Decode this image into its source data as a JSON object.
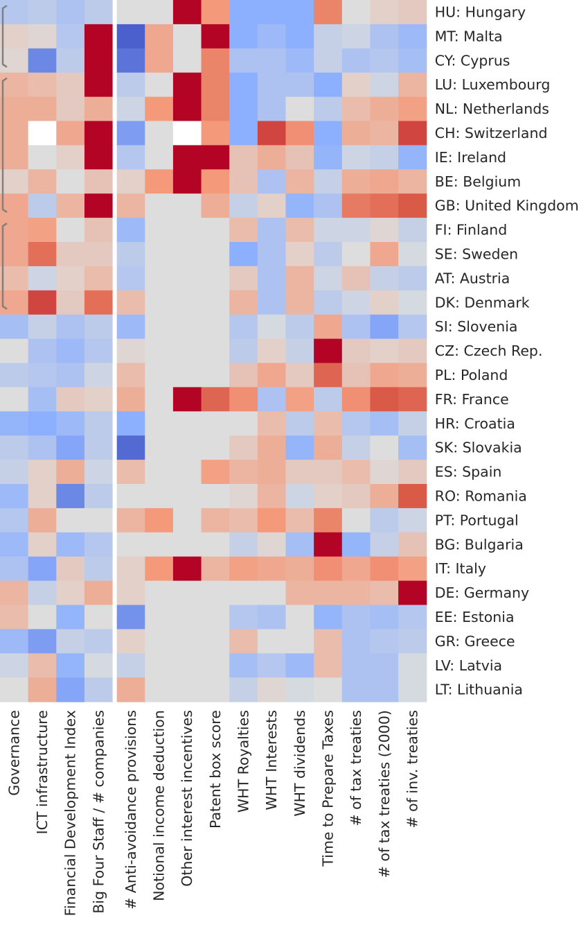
{
  "chart_data": {
    "type": "heatmap",
    "title": "",
    "colormap": "coolwarm",
    "value_range": [
      -1,
      1
    ],
    "columns": [
      "Governance",
      "ICT infrastructure",
      "Financial Development Index",
      "Big Four Staff / # companies",
      "# Anti-avoidance provisions",
      "Notional income deduction",
      "Other interest incentives",
      "Patent box score",
      "WHT Royalties",
      "WHT Interests",
      "WHT dividends",
      "Time to Prepare Taxes",
      "# of tax treaties",
      "# of tax treaties (2000)",
      "# of inv. treaties"
    ],
    "rows": [
      "HU: Hungary",
      "MT: Malta",
      "CY: Cyprus",
      "LU: Luxembourg",
      "NL: Netherlands",
      "CH: Switzerland",
      "IE: Ireland",
      "BE: Belgium",
      "GB: United Kingdom",
      "FI: Finland",
      "SE: Sweden",
      "AT: Austria",
      "DK: Denmark",
      "SI: Slovenia",
      "CZ: Czech Rep.",
      "PL: Poland",
      "FR: France",
      "HR: Croatia",
      "SK: Slovakia",
      "ES: Spain",
      "RO: Romania",
      "PT: Portugal",
      "BG: Bulgaria",
      "IT: Italy",
      "DE: Germany",
      "EE: Estonia",
      "GR: Greece",
      "LV: Latvia",
      "LT: Lithuania"
    ],
    "values": [
      [
        -0.25,
        -0.2,
        -0.3,
        -0.2,
        0,
        0,
        1,
        0.5,
        -0.5,
        -0.5,
        -0.5,
        0.6,
        0,
        0.1,
        0.15
      ],
      [
        0.1,
        0.05,
        -0.25,
        1,
        -0.9,
        0.4,
        0,
        1,
        -0.5,
        -0.4,
        -0.5,
        -0.15,
        -0.1,
        -0.3,
        -0.4
      ],
      [
        0.05,
        -0.7,
        -0.2,
        1,
        -0.8,
        0.4,
        0,
        0.6,
        -0.3,
        -0.3,
        -0.4,
        -0.15,
        -0.3,
        -0.25,
        -0.35
      ],
      [
        0.3,
        0.25,
        0.15,
        1,
        -0.2,
        0,
        1,
        0.6,
        -0.5,
        -0.3,
        -0.3,
        -0.5,
        0.1,
        -0.1,
        0.3
      ],
      [
        0.35,
        0.35,
        0.15,
        0.35,
        -0.1,
        0.5,
        1,
        0.6,
        -0.5,
        -0.3,
        0,
        -0.2,
        0.25,
        0.35,
        0.45
      ],
      [
        0.35,
        null,
        0.4,
        1,
        -0.6,
        0,
        null,
        0.5,
        -0.5,
        0.85,
        0.55,
        -0.5,
        0.35,
        0.3,
        0.85
      ],
      [
        0.35,
        0,
        0.1,
        1,
        -0.25,
        0,
        1,
        1,
        0.2,
        0.35,
        0.2,
        -0.45,
        -0.1,
        -0.15,
        -0.45
      ],
      [
        0.1,
        0.3,
        0,
        0.2,
        0.1,
        0.5,
        1,
        0.5,
        0.2,
        -0.3,
        0.3,
        -0.15,
        0.35,
        0.4,
        0.3
      ],
      [
        0.4,
        -0.2,
        0.3,
        1,
        0.3,
        0,
        0,
        0.35,
        -0.15,
        0.1,
        -0.45,
        -0.3,
        0.65,
        0.7,
        0.8
      ],
      [
        0.4,
        0.45,
        0,
        0.2,
        -0.4,
        0,
        0,
        0,
        0.25,
        -0.3,
        0.25,
        -0.1,
        -0.1,
        0.05,
        -0.15
      ],
      [
        0.4,
        0.7,
        0.15,
        0.15,
        -0.2,
        0,
        0,
        0,
        -0.5,
        -0.3,
        0.1,
        -0.2,
        0,
        0.4,
        -0.05
      ],
      [
        0.25,
        -0.1,
        0.1,
        0.25,
        -0.25,
        0,
        0,
        0,
        0.15,
        -0.3,
        0.3,
        -0.1,
        0.2,
        -0.15,
        -0.2
      ],
      [
        0.4,
        0.85,
        0.15,
        0.7,
        0.25,
        0,
        0,
        0,
        0.3,
        -0.3,
        0.3,
        -0.2,
        -0.1,
        0.1,
        -0.05
      ],
      [
        -0.35,
        -0.15,
        -0.3,
        -0.2,
        -0.4,
        0,
        0,
        0,
        -0.25,
        -0.05,
        -0.2,
        0.4,
        -0.3,
        -0.55,
        -0.25
      ],
      [
        0,
        -0.3,
        -0.4,
        -0.25,
        0.05,
        0,
        0,
        0,
        -0.2,
        0.1,
        -0.15,
        1,
        0.15,
        0.1,
        0.15
      ],
      [
        -0.2,
        -0.25,
        -0.3,
        -0.1,
        0.25,
        0,
        0,
        0,
        0.2,
        0.4,
        0.15,
        0.75,
        0.2,
        0.4,
        0.35
      ],
      [
        0,
        -0.35,
        0.15,
        0.1,
        0.35,
        0,
        1,
        0.75,
        0.55,
        -0.3,
        0.45,
        -0.2,
        0.55,
        0.8,
        0.75
      ],
      [
        -0.45,
        -0.5,
        -0.4,
        -0.2,
        -0.5,
        0,
        0,
        0,
        0,
        0.25,
        -0.2,
        0.25,
        -0.25,
        -0.35,
        -0.15
      ],
      [
        -0.2,
        -0.3,
        -0.55,
        -0.2,
        -0.85,
        0,
        0,
        0,
        0.15,
        0.35,
        -0.45,
        0.35,
        -0.15,
        0,
        -0.35
      ],
      [
        -0.15,
        0.1,
        0.35,
        -0.1,
        0.25,
        0,
        0,
        0.45,
        0.3,
        0.35,
        0.15,
        0.15,
        0.25,
        0.05,
        0.15
      ],
      [
        -0.4,
        0.1,
        -0.7,
        -0.2,
        0,
        0,
        0,
        0,
        0.05,
        0.3,
        -0.1,
        0.1,
        0.15,
        0.35,
        0.8
      ],
      [
        -0.25,
        0.35,
        0,
        0,
        0.3,
        0.5,
        0,
        0.3,
        0.25,
        0.5,
        0.25,
        0.6,
        0,
        -0.2,
        -0.1
      ],
      [
        -0.4,
        0.1,
        -0.4,
        -0.25,
        0,
        0,
        0,
        0,
        -0.15,
        0.05,
        -0.35,
        1,
        -0.45,
        -0.15,
        0.2
      ],
      [
        -0.3,
        -0.55,
        0.15,
        -0.2,
        0.1,
        0.5,
        1,
        0.3,
        0.45,
        0.4,
        0.35,
        0.55,
        0.4,
        0.55,
        0.45
      ],
      [
        0.3,
        -0.15,
        0.1,
        0.35,
        0.1,
        0,
        0,
        0,
        0,
        0,
        0.3,
        0.3,
        0.3,
        0.25,
        1
      ],
      [
        0.25,
        0,
        -0.45,
        0,
        -0.65,
        0,
        0,
        0,
        -0.25,
        -0.3,
        0,
        -0.45,
        -0.3,
        -0.35,
        -0.25
      ],
      [
        -0.4,
        -0.6,
        -0.15,
        -0.2,
        0.1,
        0,
        0,
        0,
        0.25,
        0,
        0,
        0.25,
        -0.3,
        -0.25,
        -0.2
      ],
      [
        -0.1,
        0.25,
        -0.45,
        -0.05,
        -0.15,
        0,
        0,
        0,
        -0.35,
        -0.25,
        -0.4,
        0.25,
        -0.3,
        -0.3,
        -0.05
      ],
      [
        0,
        0.35,
        -0.55,
        -0.2,
        0.35,
        0,
        0,
        0,
        -0.15,
        0.05,
        -0.05,
        0,
        -0.3,
        -0.3,
        -0.05
      ]
    ],
    "missing_color": "#ffffff",
    "column_groups": [
      [
        0,
        3
      ],
      [
        4,
        14
      ]
    ],
    "row_brackets": [
      [
        0,
        2
      ],
      [
        3,
        8
      ],
      [
        9,
        12
      ]
    ]
  }
}
